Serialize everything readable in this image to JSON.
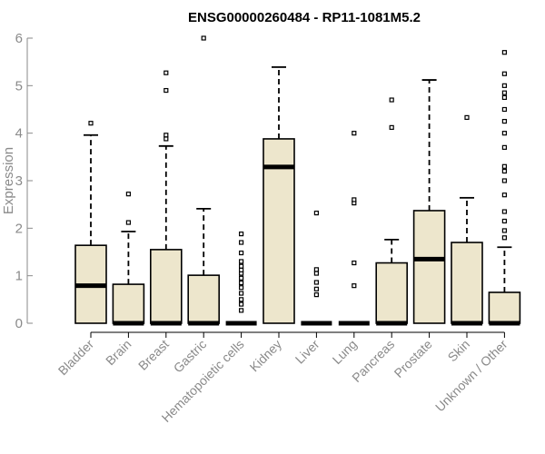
{
  "chart_data": {
    "type": "boxplot",
    "title": "ENSG00000260484 - RP11-1081M5.2",
    "xlabel": "",
    "ylabel": "Expression",
    "ylim": [
      0,
      6
    ],
    "yticks": [
      0,
      1,
      2,
      3,
      4,
      5,
      6
    ],
    "grid": false,
    "box_color": "#ede6cc",
    "categories": [
      "Bladder",
      "Brain",
      "Breast",
      "Gastric",
      "Hematopoietic cells",
      "Kidney",
      "Liver",
      "Lung",
      "Pancreas",
      "Prostate",
      "Skin",
      "Unknown / Other"
    ],
    "boxes": [
      {
        "q1": 0,
        "median": 0.79,
        "q3": 1.64,
        "whisker_low": 0,
        "whisker_high": 3.96,
        "outliers": [
          4.21
        ]
      },
      {
        "q1": 0,
        "median": 0,
        "q3": 0.82,
        "whisker_low": 0,
        "whisker_high": 1.93,
        "outliers": [
          2.12,
          2.72
        ]
      },
      {
        "q1": 0,
        "median": 0,
        "q3": 1.55,
        "whisker_low": 0,
        "whisker_high": 3.73,
        "outliers": [
          3.88,
          3.96,
          4.9,
          5.27
        ]
      },
      {
        "q1": 0,
        "median": 0,
        "q3": 1.01,
        "whisker_low": 0,
        "whisker_high": 2.41,
        "outliers": [
          6.0
        ]
      },
      {
        "q1": 0,
        "median": 0,
        "q3": 0,
        "whisker_low": 0,
        "whisker_high": 0,
        "outliers": [
          0.27,
          0.4,
          0.5,
          0.63,
          0.75,
          0.85,
          0.95,
          1.05,
          1.12,
          1.2,
          1.3,
          1.48,
          1.7,
          1.88
        ]
      },
      {
        "q1": 0,
        "median": 3.29,
        "q3": 3.88,
        "whisker_low": 0,
        "whisker_high": 5.39,
        "outliers": []
      },
      {
        "q1": 0,
        "median": 0,
        "q3": 0,
        "whisker_low": 0,
        "whisker_high": 0,
        "outliers": [
          0.6,
          0.72,
          0.86,
          1.05,
          1.13,
          2.32
        ]
      },
      {
        "q1": 0,
        "median": 0,
        "q3": 0,
        "whisker_low": 0,
        "whisker_high": 0,
        "outliers": [
          0.79,
          1.27,
          2.53,
          2.6,
          4.0
        ]
      },
      {
        "q1": 0,
        "median": 0,
        "q3": 1.27,
        "whisker_low": 0,
        "whisker_high": 1.76,
        "outliers": [
          4.12,
          4.7
        ]
      },
      {
        "q1": 0,
        "median": 1.35,
        "q3": 2.37,
        "whisker_low": 0,
        "whisker_high": 5.12,
        "outliers": []
      },
      {
        "q1": 0,
        "median": 0,
        "q3": 1.7,
        "whisker_low": 0,
        "whisker_high": 2.64,
        "outliers": [
          4.33
        ]
      },
      {
        "q1": 0,
        "median": 0,
        "q3": 0.65,
        "whisker_low": 0,
        "whisker_high": 1.6,
        "outliers": [
          1.8,
          1.95,
          2.15,
          2.35,
          2.7,
          3.0,
          3.2,
          3.3,
          3.7,
          4.0,
          4.25,
          4.5,
          4.75,
          4.85,
          5.0,
          5.25,
          5.7
        ]
      }
    ]
  }
}
